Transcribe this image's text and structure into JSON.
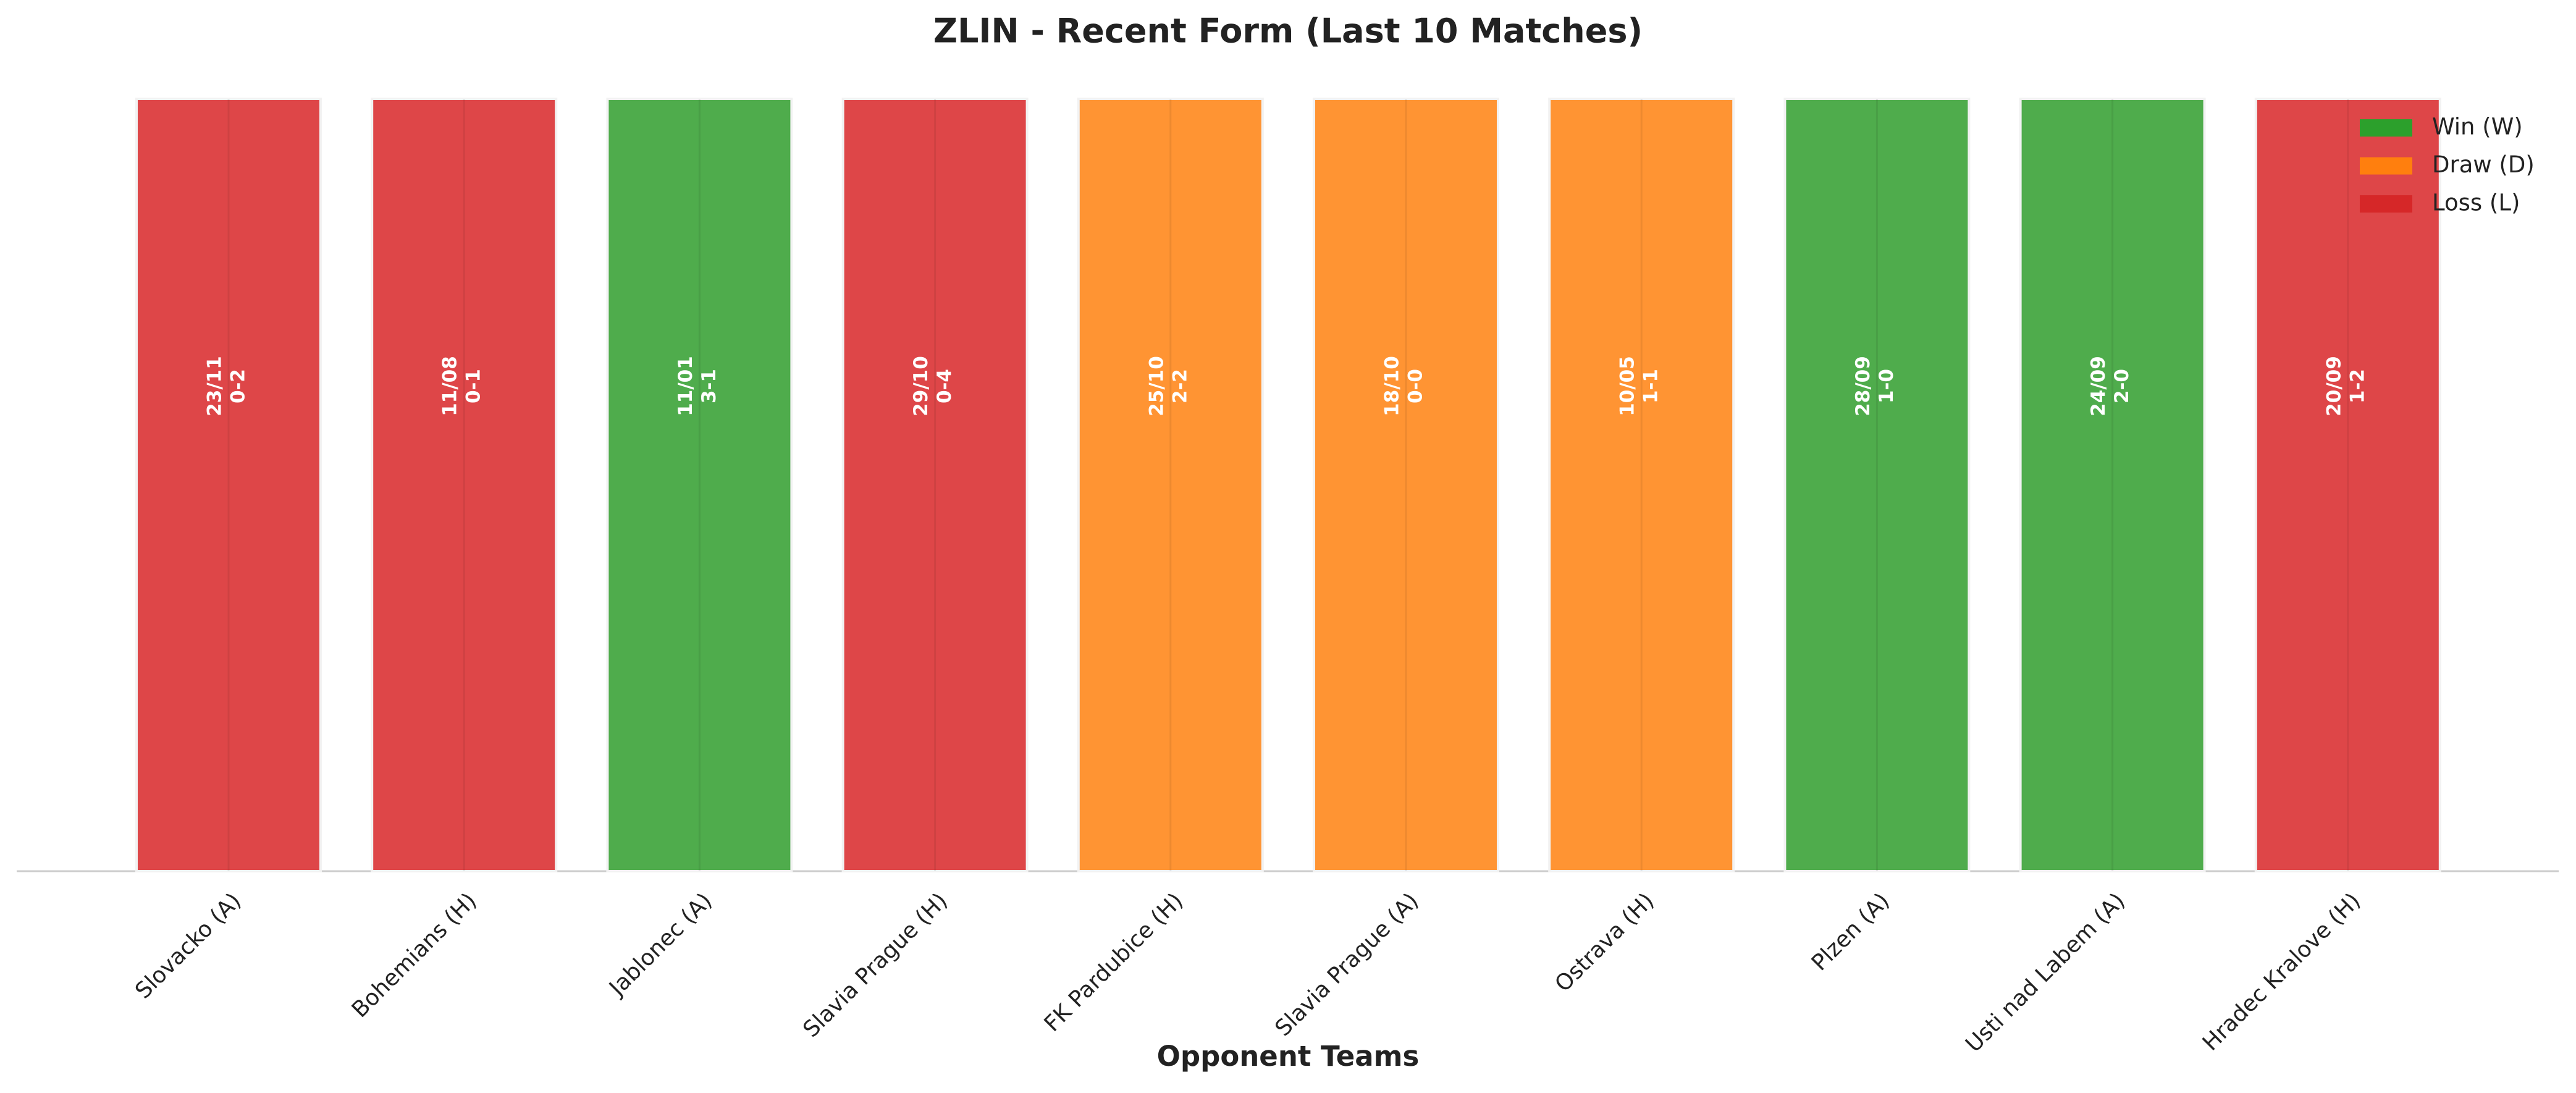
{
  "chart_data": {
    "type": "bar",
    "title": "ZLIN - Recent Form (Last 10 Matches)",
    "xlabel": "Opponent Teams",
    "categories": [
      "Slovacko (A)",
      "Bohemians (H)",
      "Jablonec (A)",
      "Slavia Prague (H)",
      "FK Pardubice (H)",
      "Slavia Prague (A)",
      "Ostrava (H)",
      "Plzen (A)",
      "Usti nad Labem (A)",
      "Hradec Kralove (H)"
    ],
    "values": [
      1,
      1,
      1,
      1,
      1,
      1,
      1,
      1,
      1,
      1
    ],
    "bar_labels": [
      {
        "date": "23/11",
        "score": "0-2"
      },
      {
        "date": "11/08",
        "score": "0-1"
      },
      {
        "date": "11/01",
        "score": "3-1"
      },
      {
        "date": "29/10",
        "score": "0-4"
      },
      {
        "date": "25/10",
        "score": "2-2"
      },
      {
        "date": "18/10",
        "score": "0-0"
      },
      {
        "date": "10/05",
        "score": "1-1"
      },
      {
        "date": "28/09",
        "score": "1-0"
      },
      {
        "date": "24/09",
        "score": "2-0"
      },
      {
        "date": "20/09",
        "score": "1-2"
      }
    ],
    "colors": [
      "#de4648",
      "#de4648",
      "#4fac4c",
      "#de4648",
      "#ff9433",
      "#ff9433",
      "#ff9433",
      "#4fac4c",
      "#4fac4c",
      "#de4648"
    ],
    "ylim": [
      0,
      1.05
    ],
    "legend": [
      {
        "name": "Win (W)",
        "color": "#2ca02c"
      },
      {
        "name": "Draw (D)",
        "color": "#ff7f0e"
      },
      {
        "name": "Loss (L)",
        "color": "#d62728"
      }
    ],
    "legend_position": "upper right"
  }
}
